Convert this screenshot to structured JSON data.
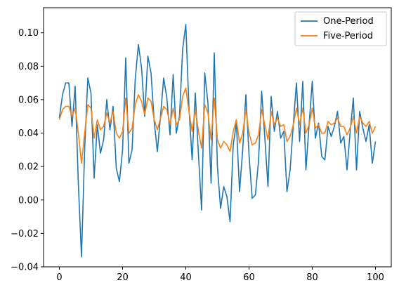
{
  "chart_data": {
    "type": "line",
    "title": "",
    "xlabel": "",
    "ylabel": "",
    "xlim": [
      -5,
      105
    ],
    "ylim": [
      -0.04,
      0.115
    ],
    "x_ticks": [
      0,
      20,
      40,
      60,
      80,
      100
    ],
    "y_ticks": [
      -0.04,
      -0.02,
      0.0,
      0.02,
      0.04,
      0.06,
      0.08,
      0.1
    ],
    "x_tick_labels": [
      "0",
      "20",
      "40",
      "60",
      "80",
      "100"
    ],
    "y_tick_labels": [
      "−0.04",
      "−0.02",
      "0.00",
      "0.02",
      "0.04",
      "0.06",
      "0.08",
      "0.10"
    ],
    "grid": false,
    "legend_position": "top-right",
    "x": [
      0,
      1,
      2,
      3,
      4,
      5,
      6,
      7,
      8,
      9,
      10,
      11,
      12,
      13,
      14,
      15,
      16,
      17,
      18,
      19,
      20,
      21,
      22,
      23,
      24,
      25,
      26,
      27,
      28,
      29,
      30,
      31,
      32,
      33,
      34,
      35,
      36,
      37,
      38,
      39,
      40,
      41,
      42,
      43,
      44,
      45,
      46,
      47,
      48,
      49,
      50,
      51,
      52,
      53,
      54,
      55,
      56,
      57,
      58,
      59,
      60,
      61,
      62,
      63,
      64,
      65,
      66,
      67,
      68,
      69,
      70,
      71,
      72,
      73,
      74,
      75,
      76,
      77,
      78,
      79,
      80,
      81,
      82,
      83,
      84,
      85,
      86,
      87,
      88,
      89,
      90,
      91,
      92,
      93,
      94,
      95,
      96,
      97,
      98,
      99,
      100
    ],
    "series": [
      {
        "name": "One-Period",
        "color": "#1f77b4",
        "values": [
          0.049,
          0.063,
          0.07,
          0.07,
          0.044,
          0.068,
          0.01,
          -0.034,
          0.03,
          0.073,
          0.064,
          0.013,
          0.045,
          0.028,
          0.036,
          0.06,
          0.042,
          0.056,
          0.019,
          0.011,
          0.03,
          0.085,
          0.022,
          0.03,
          0.072,
          0.093,
          0.079,
          0.05,
          0.086,
          0.076,
          0.047,
          0.029,
          0.05,
          0.073,
          0.061,
          0.039,
          0.075,
          0.04,
          0.05,
          0.09,
          0.105,
          0.055,
          0.024,
          0.064,
          0.027,
          -0.006,
          0.076,
          0.058,
          0.01,
          0.088,
          0.02,
          -0.005,
          0.008,
          0.002,
          -0.013,
          0.033,
          0.046,
          0.005,
          0.03,
          0.063,
          0.027,
          0.001,
          0.003,
          0.023,
          0.065,
          0.037,
          0.008,
          0.062,
          0.041,
          0.053,
          0.037,
          0.041,
          0.005,
          0.018,
          0.045,
          0.07,
          0.035,
          0.071,
          0.018,
          0.045,
          0.071,
          0.037,
          0.046,
          0.026,
          0.024,
          0.044,
          0.038,
          0.044,
          0.053,
          0.034,
          0.038,
          0.018,
          0.041,
          0.061,
          0.018,
          0.053,
          0.043,
          0.035,
          0.045,
          0.022,
          0.035
        ]
      },
      {
        "name": "Five-Period",
        "color": "#ff7f0e",
        "values": [
          0.048,
          0.054,
          0.056,
          0.056,
          0.05,
          0.055,
          0.04,
          0.022,
          0.04,
          0.057,
          0.055,
          0.037,
          0.048,
          0.042,
          0.044,
          0.052,
          0.046,
          0.053,
          0.04,
          0.037,
          0.041,
          0.061,
          0.04,
          0.043,
          0.057,
          0.063,
          0.059,
          0.051,
          0.061,
          0.059,
          0.048,
          0.042,
          0.049,
          0.056,
          0.054,
          0.045,
          0.055,
          0.045,
          0.048,
          0.062,
          0.067,
          0.053,
          0.041,
          0.054,
          0.041,
          0.031,
          0.057,
          0.052,
          0.036,
          0.061,
          0.036,
          0.031,
          0.035,
          0.033,
          0.029,
          0.041,
          0.048,
          0.034,
          0.04,
          0.054,
          0.04,
          0.033,
          0.034,
          0.039,
          0.054,
          0.045,
          0.036,
          0.053,
          0.045,
          0.049,
          0.044,
          0.045,
          0.035,
          0.038,
          0.045,
          0.055,
          0.045,
          0.055,
          0.04,
          0.045,
          0.055,
          0.043,
          0.045,
          0.04,
          0.04,
          0.047,
          0.045,
          0.046,
          0.049,
          0.044,
          0.044,
          0.039,
          0.043,
          0.05,
          0.04,
          0.05,
          0.046,
          0.044,
          0.047,
          0.04,
          0.044
        ]
      }
    ]
  }
}
